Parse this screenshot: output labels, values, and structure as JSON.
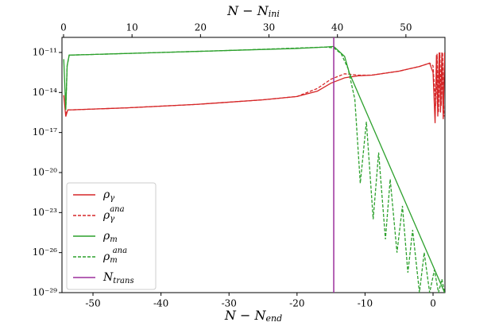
{
  "chart_data": {
    "type": "line",
    "x_label": "N − N",
    "x_label_sub": "end",
    "x2_label": "N − N",
    "x2_label_sub": "ini",
    "xlim": [
      -54.56,
      1.75
    ],
    "xticks": [
      -50,
      -40,
      -30,
      -20,
      -10,
      0
    ],
    "x2lim": [
      -0.23,
      55.7
    ],
    "x2ticks": [
      0,
      10,
      20,
      30,
      40,
      50
    ],
    "log_y": true,
    "ylim": [
      1e-29,
      1.35e-10
    ],
    "yticks": [
      {
        "value": 1e-29,
        "label": "10⁻²⁹"
      },
      {
        "value": 1e-26,
        "label": "10⁻²⁶"
      },
      {
        "value": 1e-23,
        "label": "10⁻²³"
      },
      {
        "value": 1e-20,
        "label": "10⁻²⁰"
      },
      {
        "value": 1e-17,
        "label": "10⁻¹⁷"
      },
      {
        "value": 1e-14,
        "label": "10⁻¹⁴"
      },
      {
        "value": 1e-11,
        "label": "10⁻¹¹"
      }
    ],
    "legend": "lower left",
    "series": [
      {
        "name": "ρ",
        "name_sub": "γ",
        "color": "#d62728",
        "dash": false,
        "x": [
          -54.3,
          -54,
          -53.7,
          -53,
          -45,
          -35,
          -25,
          -20,
          -17,
          -15,
          -13,
          -11,
          -9,
          -5,
          -2,
          -0.5,
          0,
          0.3,
          0.5,
          0.7,
          0.9,
          1.1,
          1.3,
          1.5,
          1.7
        ],
        "values": [
          6.31e-15,
          1.58e-16,
          5.01e-16,
          5.01e-16,
          7.08e-16,
          1.26e-15,
          2.82e-15,
          5.01e-15,
          1.26e-14,
          5.01e-14,
          1.26e-13,
          1.78e-13,
          2e-13,
          3.98e-13,
          8.91e-13,
          1.58e-12,
          3.16e-13,
          5.01e-17,
          6.31e-12,
          1.58e-16,
          1e-11,
          3.16e-16,
          1e-11,
          1e-16,
          1e-11
        ]
      },
      {
        "name": "ρ",
        "name_sub": "γ",
        "name_sup": "ana",
        "color": "#d62728",
        "dash": true,
        "x": [
          -54,
          -53.7,
          -53,
          -45,
          -35,
          -25,
          -20,
          -17,
          -15,
          -13,
          -11,
          -9,
          -5,
          -2,
          -0.5,
          0,
          0.4,
          0.6,
          0.8,
          1,
          1.2,
          1.4,
          1.6
        ],
        "values": [
          2.51e-16,
          5.01e-16,
          5.01e-16,
          7.08e-16,
          1.26e-15,
          2.82e-15,
          5.01e-15,
          2e-14,
          1e-13,
          2.51e-13,
          2e-13,
          2e-13,
          3.98e-13,
          8.91e-13,
          1.58e-12,
          1e-12,
          1e-15,
          7.94e-12,
          3.16e-16,
          1e-11,
          1e-15,
          1e-11,
          1.58e-16
        ]
      },
      {
        "name": "ρ",
        "name_sub": "m",
        "color": "#2ca02c",
        "dash": false,
        "x": [
          -54.3,
          -54,
          -53.8,
          -53.5,
          -50,
          -40,
          -30,
          -20,
          -16,
          -14.6,
          -13,
          -12.3,
          1.7
        ],
        "values": [
          3.16e-12,
          5.01e-16,
          1e-12,
          6.31e-12,
          7.08e-12,
          1e-11,
          1.41e-11,
          2e-11,
          2.51e-11,
          2.82e-11,
          5.01e-12,
          2.82e-13,
          1e-29
        ]
      },
      {
        "name": "ρ",
        "name_sub": "m",
        "name_sup": "ana",
        "color": "#2ca02c",
        "dash": true,
        "x": [
          -54,
          -53.8,
          -53.5,
          -50,
          -30,
          -16,
          -14.6,
          -13.5,
          -12.5,
          -11.5,
          -10.7,
          -9.8,
          -8.8,
          -8,
          -7,
          -6.3,
          -5.3,
          -4.5,
          -3.7,
          -3,
          -2,
          -1.3,
          -0.5,
          0.2,
          0.8,
          1.3,
          1.7
        ],
        "values": [
          5.01e-16,
          1e-12,
          6.31e-12,
          7.08e-12,
          1.41e-11,
          2.51e-11,
          2.24e-11,
          7.94e-12,
          6.31e-13,
          3.16e-15,
          1.58e-21,
          6.31e-17,
          3.16e-24,
          3.16e-19,
          1e-25,
          3.16e-21,
          1e-26,
          3.16e-23,
          3.16e-28,
          5.01e-25,
          1e-29,
          1e-26,
          1e-29,
          5.01e-28,
          1e-29,
          1e-28,
          1e-29
        ]
      }
    ],
    "vlines": [
      {
        "name": "N",
        "name_sub": "trans",
        "color": "#9b2f9b",
        "x": -14.6
      }
    ]
  }
}
